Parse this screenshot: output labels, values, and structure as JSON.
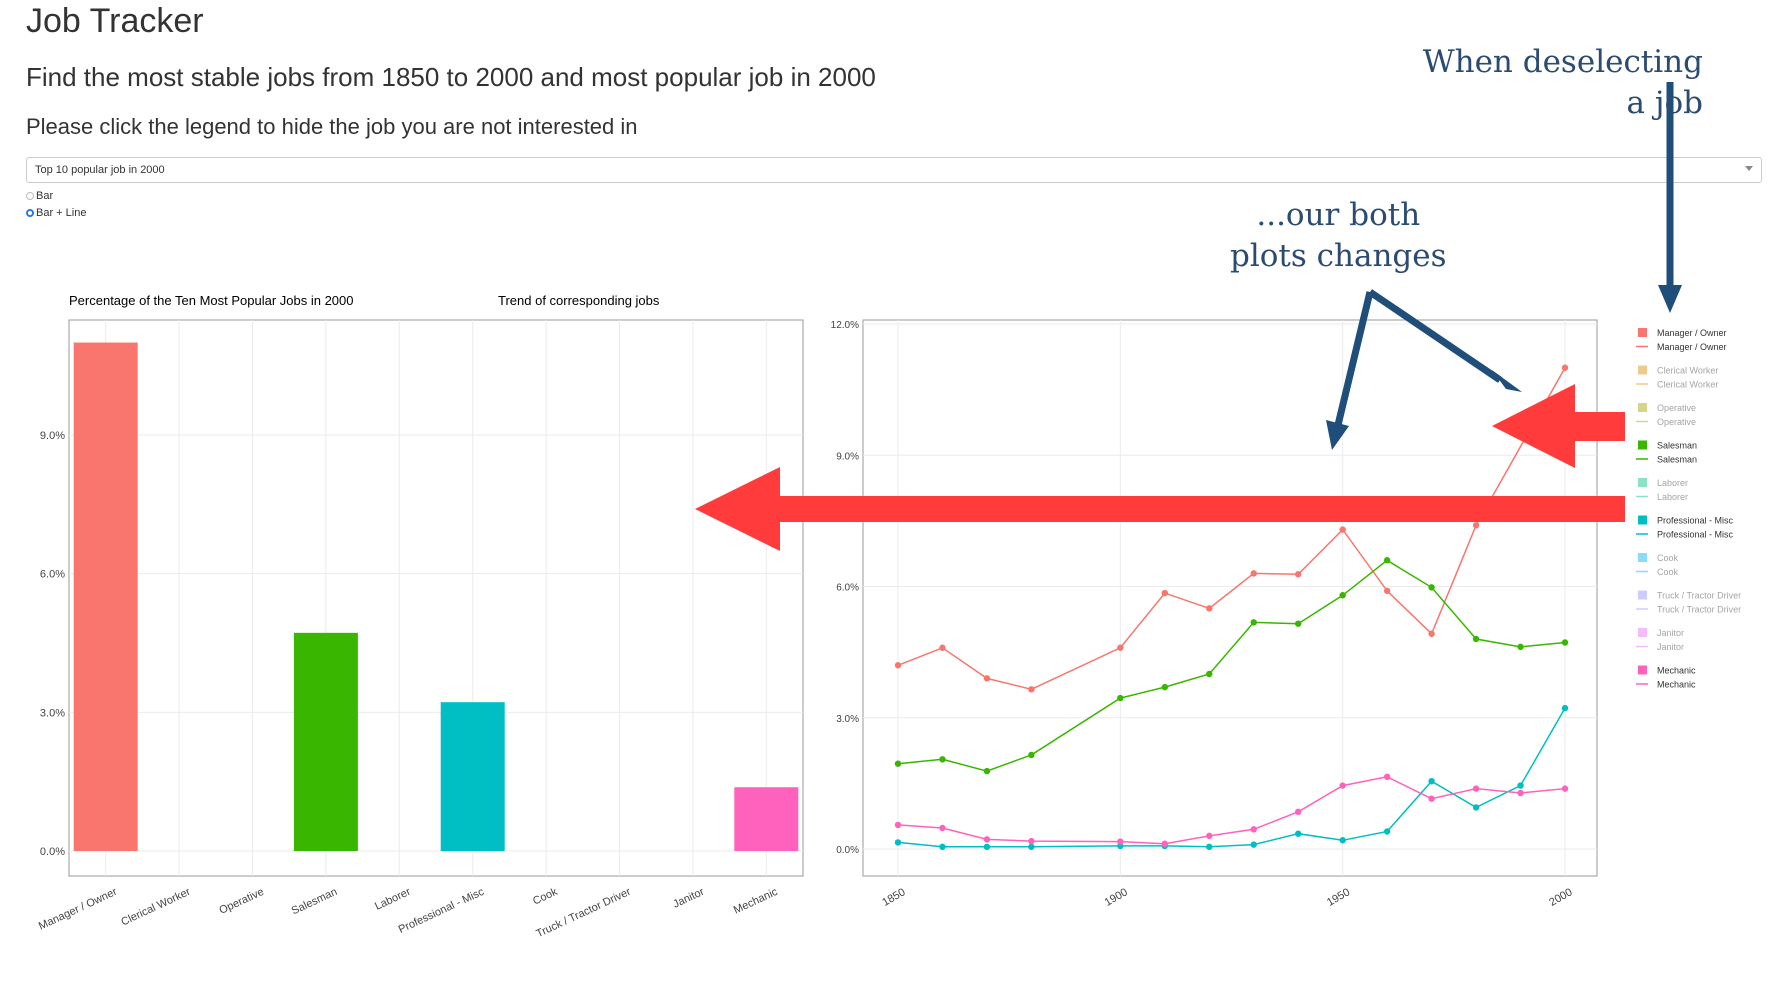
{
  "header": {
    "title": "Job Tracker",
    "subtitle": "Find the most stable jobs from 1850 to 2000 and most popular job in 2000",
    "instruction": "Please click the legend to hide the job you are not interested in"
  },
  "controls": {
    "select_value": "Top 10 popular job in 2000",
    "radio_options": [
      "Bar",
      "Bar + Line"
    ],
    "radio_selected": "Bar + Line"
  },
  "annotations": {
    "deselect_line1": "When deselecting",
    "deselect_line2": "a job",
    "both_line1": "...our both",
    "both_line2": "plots changes"
  },
  "colors": {
    "annotation": "#1f4e7a",
    "big_arrow": "#ff3b3b"
  },
  "chart_data": [
    {
      "type": "bar",
      "title": "Percentage of the Ten Most Popular Jobs in 2000",
      "categories": [
        "Manager / Owner",
        "Clerical Worker",
        "Operative",
        "Salesman",
        "Laborer",
        "Professional - Misc",
        "Cook",
        "Truck / Tractor Driver",
        "Janitor",
        "Mechanic"
      ],
      "values": [
        11.0,
        null,
        null,
        4.72,
        null,
        3.22,
        null,
        null,
        null,
        1.38
      ],
      "colors": [
        "#F8766D",
        "#D89000",
        "#A3A500",
        "#39B600",
        "#00BF7D",
        "#00BFC4",
        "#00B0F6",
        "#9590FF",
        "#E76BF3",
        "#FF62BC"
      ],
      "yticks": [
        "0.0%",
        "3.0%",
        "6.0%",
        "9.0%"
      ],
      "ylim": [
        0,
        11.5
      ]
    },
    {
      "type": "line",
      "title": "Trend of corresponding jobs",
      "x": [
        1850,
        1860,
        1870,
        1880,
        1900,
        1910,
        1920,
        1930,
        1940,
        1950,
        1960,
        1970,
        1980,
        1990,
        2000
      ],
      "xticks": [
        "1850",
        "1900",
        "1950",
        "2000"
      ],
      "yticks": [
        "0.0%",
        "3.0%",
        "6.0%",
        "9.0%",
        "12.0%"
      ],
      "ylim": [
        0,
        12
      ],
      "xlim": [
        1845,
        2007
      ],
      "series": [
        {
          "name": "Manager / Owner",
          "color": "#F8766D",
          "values": [
            4.2,
            4.6,
            3.9,
            3.65,
            4.6,
            5.85,
            5.5,
            6.3,
            6.28,
            7.3,
            5.9,
            4.92,
            7.4,
            null,
            11.0
          ]
        },
        {
          "name": "Salesman",
          "color": "#39B600",
          "values": [
            1.95,
            2.05,
            1.78,
            2.15,
            3.45,
            3.7,
            4.0,
            5.18,
            5.15,
            5.8,
            6.6,
            5.98,
            4.8,
            4.62,
            4.72
          ]
        },
        {
          "name": "Professional - Misc",
          "color": "#00BFC4",
          "values": [
            0.15,
            0.05,
            0.05,
            0.05,
            0.07,
            0.07,
            0.05,
            0.1,
            0.35,
            0.2,
            0.4,
            1.55,
            0.95,
            1.45,
            3.22
          ]
        },
        {
          "name": "Mechanic",
          "color": "#FF62BC",
          "values": [
            0.55,
            0.48,
            0.22,
            0.18,
            0.17,
            0.12,
            0.3,
            0.45,
            0.85,
            1.45,
            1.65,
            1.15,
            1.38,
            1.28,
            1.38
          ]
        }
      ],
      "legend": [
        {
          "name": "Manager / Owner",
          "color": "#F8766D",
          "active": true
        },
        {
          "name": "Clerical Worker",
          "color": "#D89000",
          "active": false
        },
        {
          "name": "Operative",
          "color": "#A3A500",
          "active": false
        },
        {
          "name": "Salesman",
          "color": "#39B600",
          "active": true
        },
        {
          "name": "Laborer",
          "color": "#00BF7D",
          "active": false
        },
        {
          "name": "Professional - Misc",
          "color": "#00BFC4",
          "active": true
        },
        {
          "name": "Cook",
          "color": "#00B0F6",
          "active": false
        },
        {
          "name": "Truck / Tractor Driver",
          "color": "#9590FF",
          "active": false
        },
        {
          "name": "Janitor",
          "color": "#E76BF3",
          "active": false
        },
        {
          "name": "Mechanic",
          "color": "#FF62BC",
          "active": true
        }
      ]
    }
  ]
}
